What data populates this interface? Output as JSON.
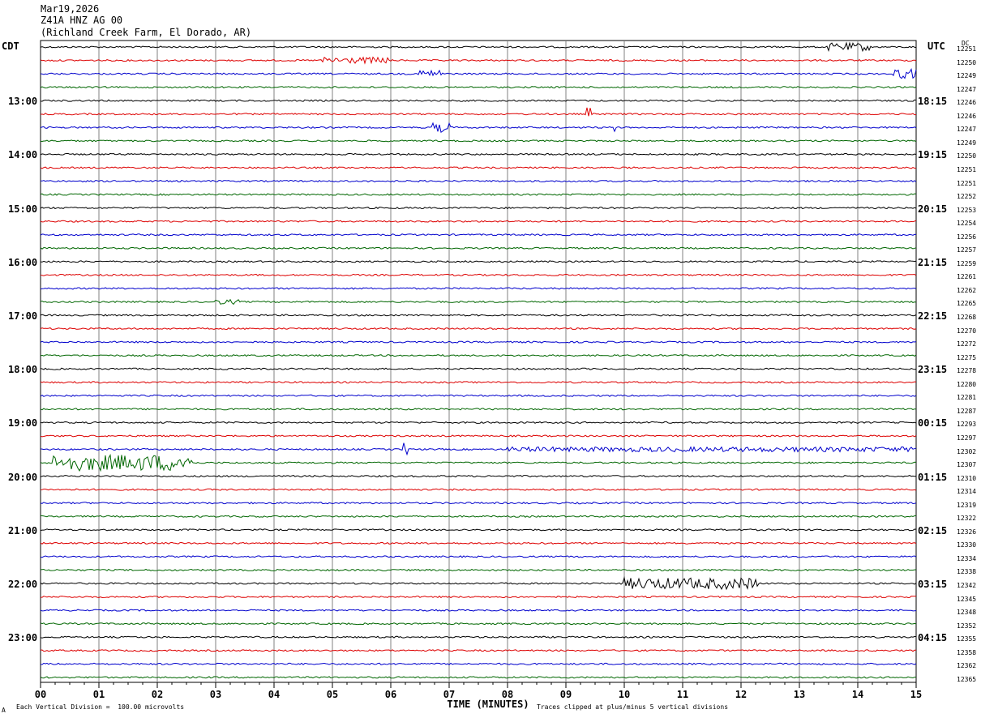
{
  "header": {
    "date": "Mar19,2026",
    "station": "Z41A HNZ AG 00",
    "location": "(Richland Creek Farm, El Dorado, AR)"
  },
  "left_zone_label": "CDT",
  "right_zone_label": "UTC",
  "dc_header": "DC",
  "footer": {
    "scale_note": "Each Vertical Division =  100.00 microvolts",
    "clip_note": "Traces clipped at plus/minus 5 vertical divisions",
    "small_mark": "A"
  },
  "colors": {
    "trace_cycle": [
      "#000000",
      "#dd0000",
      "#0000cc",
      "#006600"
    ],
    "grid": "#808080"
  },
  "chart_data": {
    "type": "line",
    "title": "Z41A HNZ AG 00",
    "xlabel": "TIME (MINUTES)",
    "ylabel": "",
    "xlim": [
      0,
      15
    ],
    "x_ticks": [
      "00",
      "01",
      "02",
      "03",
      "04",
      "05",
      "06",
      "07",
      "08",
      "09",
      "10",
      "11",
      "12",
      "13",
      "14",
      "15"
    ],
    "left_hour_labels": [
      "13:00",
      "14:00",
      "15:00",
      "16:00",
      "17:00",
      "18:00",
      "19:00",
      "20:00",
      "21:00",
      "22:00",
      "23:00"
    ],
    "right_hour_labels": [
      "18:15",
      "19:15",
      "20:15",
      "21:15",
      "22:15",
      "23:15",
      "00:15",
      "01:15",
      "02:15",
      "03:15",
      "04:15"
    ],
    "hour_label_start_row": 4,
    "rows_per_hour": 4,
    "dc_offsets": [
      12251,
      12250,
      12249,
      12247,
      12246,
      12246,
      12247,
      12249,
      12250,
      12251,
      12251,
      12252,
      12253,
      12254,
      12256,
      12257,
      12259,
      12261,
      12262,
      12265,
      12268,
      12270,
      12272,
      12275,
      12278,
      12280,
      12281,
      12287,
      12293,
      12297,
      12302,
      12307,
      12310,
      12314,
      12319,
      12322,
      12326,
      12330,
      12334,
      12338,
      12342,
      12345,
      12348,
      12352,
      12355,
      12358,
      12362,
      12365
    ],
    "events": [
      {
        "row": 0,
        "start": 13.5,
        "end": 14.2,
        "amp": 5
      },
      {
        "row": 1,
        "start": 4.8,
        "end": 6.0,
        "amp": 4
      },
      {
        "row": 2,
        "start": 6.5,
        "end": 6.9,
        "amp": 5
      },
      {
        "row": 2,
        "start": 14.6,
        "end": 15.0,
        "amp": 6
      },
      {
        "row": 5,
        "start": 9.35,
        "end": 9.42,
        "amp": 8
      },
      {
        "row": 6,
        "start": 6.7,
        "end": 7.0,
        "amp": 6
      },
      {
        "row": 6,
        "start": 9.8,
        "end": 9.9,
        "amp": 5
      },
      {
        "row": 19,
        "start": 3.0,
        "end": 3.4,
        "amp": 3
      },
      {
        "row": 30,
        "start": 6.2,
        "end": 6.3,
        "amp": 9
      },
      {
        "row": 30,
        "start": 8.0,
        "end": 15.0,
        "amp": 3
      },
      {
        "row": 31,
        "start": 0.2,
        "end": 2.6,
        "amp": 10
      },
      {
        "row": 40,
        "start": 10.0,
        "end": 12.3,
        "amp": 7
      }
    ]
  }
}
